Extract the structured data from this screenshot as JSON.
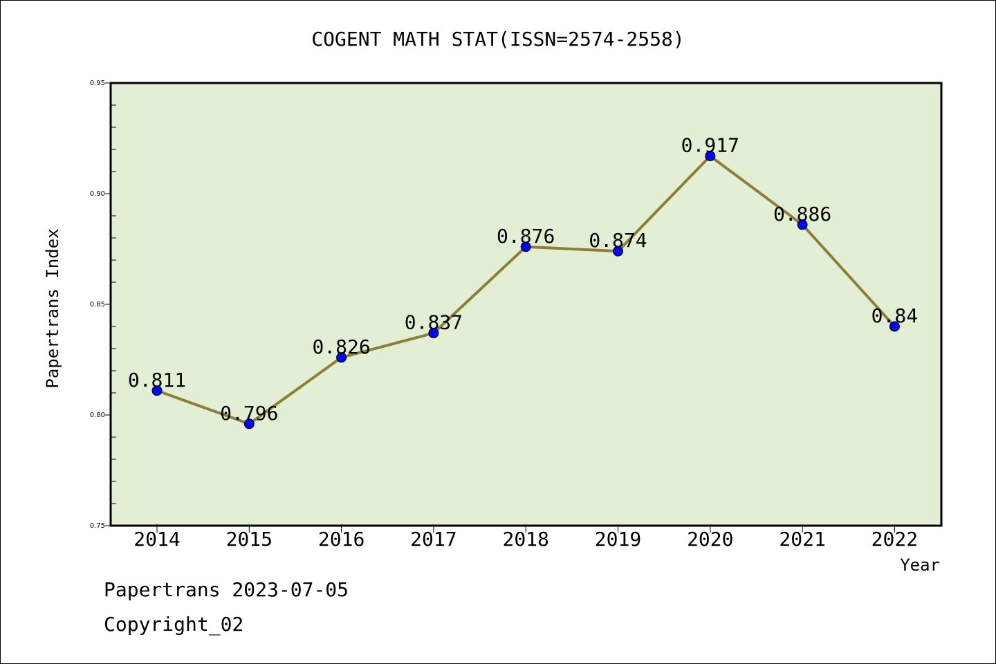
{
  "chart_data": {
    "type": "line",
    "title": "COGENT MATH STAT(ISSN=2574-2558)",
    "xlabel": "Year",
    "ylabel": "Papertrans Index",
    "x": [
      "2014",
      "2015",
      "2016",
      "2017",
      "2018",
      "2019",
      "2020",
      "2021",
      "2022"
    ],
    "series": [
      {
        "values": [
          0.811,
          0.796,
          0.826,
          0.837,
          0.876,
          0.874,
          0.917,
          0.886,
          0.84
        ],
        "labels": [
          "0.811",
          "0.796",
          "0.826",
          "0.837",
          "0.876",
          "0.874",
          "0.917",
          "0.886",
          "0.84"
        ]
      }
    ],
    "ylim": [
      0.75,
      0.95
    ],
    "yticks": [
      "0.75",
      "0.80",
      "0.85",
      "0.90",
      "0.95"
    ],
    "grid": false,
    "colors": {
      "plot_background": "#e2efd5",
      "line": "#8c7f36",
      "marker": "#0000ff"
    }
  },
  "footer": {
    "line1": "Papertrans 2023-07-05",
    "line2": "Copyright_02"
  }
}
